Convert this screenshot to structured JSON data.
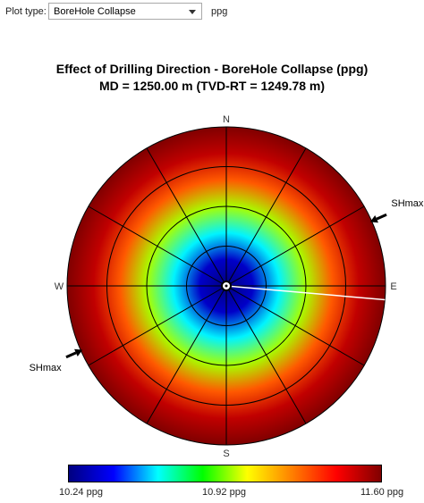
{
  "toolbar": {
    "plot_type_label": "Plot type:",
    "selected_plot": "BoreHole Collapse",
    "unit": "ppg"
  },
  "chart_data": {
    "type": "heatmap",
    "subtype": "polar",
    "title": "Effect of Drilling Direction - BoreHole Collapse (ppg)",
    "subtitle": "MD = 1250.00 m (TVD-RT = 1249.78 m)",
    "directions": [
      "N",
      "E",
      "S",
      "W"
    ],
    "annotations": [
      {
        "label": "SHmax",
        "azimuth_deg": 66
      },
      {
        "label": "SHmax",
        "azimuth_deg": 246
      }
    ],
    "value_range": [
      10.24,
      11.6
    ],
    "colorbar": {
      "ticks": [
        "10.24 ppg",
        "10.92 ppg",
        "11.60 ppg"
      ],
      "colors": [
        "#000080",
        "#0000ff",
        "#00ffff",
        "#00ff00",
        "#ffff00",
        "#ff8000",
        "#ff0000",
        "#800000"
      ]
    },
    "radial_rings": 4,
    "radial_spokes_deg": [
      0,
      30,
      60,
      90,
      120,
      150,
      180,
      210,
      240,
      270,
      300,
      330
    ],
    "well_trajectory_azimuth_deg": 95,
    "profile": {
      "description": "collapse pressure vs inclination (0 center to 90 rim)",
      "inclination_deg": [
        0,
        15,
        30,
        45,
        60,
        75,
        90
      ],
      "ppg": [
        10.24,
        10.35,
        10.62,
        10.95,
        11.27,
        11.5,
        11.6
      ]
    }
  }
}
